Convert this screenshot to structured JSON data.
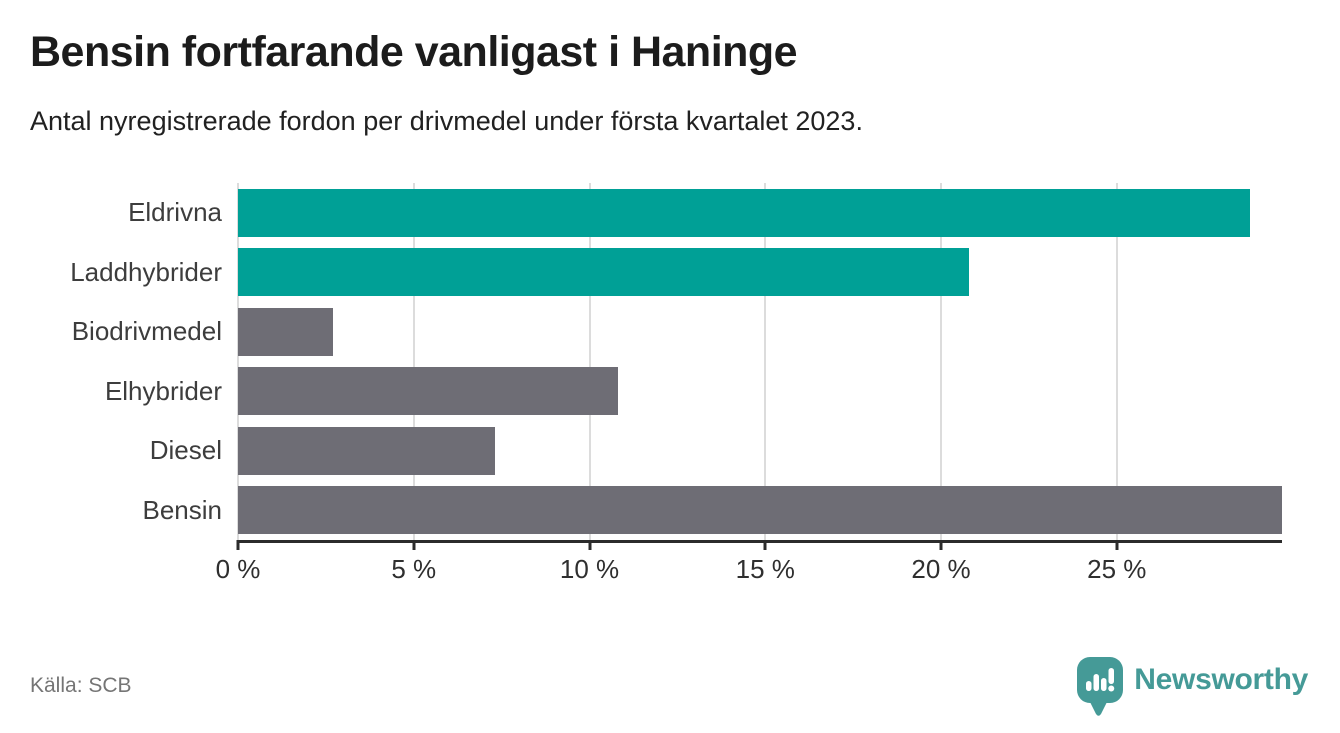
{
  "header": {
    "title": "Bensin fortfarande vanligast i Haninge",
    "subtitle": "Antal nyregistrerade fordon per drivmedel under första kvartalet 2023."
  },
  "chart_data": {
    "type": "bar",
    "orientation": "horizontal",
    "title": "Bensin fortfarande vanligast i Haninge",
    "subtitle": "Antal nyregistrerade fordon per drivmedel under första kvartalet 2023.",
    "unit": "%",
    "categories": [
      "Eldrivna",
      "Laddhybrider",
      "Biodrivmedel",
      "Elhybrider",
      "Diesel",
      "Bensin"
    ],
    "values": [
      28.8,
      20.8,
      2.7,
      10.8,
      7.3,
      29.7
    ],
    "bar_colors": [
      "#00a096",
      "#00a096",
      "#6e6d75",
      "#6e6d75",
      "#6e6d75",
      "#6e6d75"
    ],
    "xlim": [
      0,
      29.7
    ],
    "tick_values": [
      0,
      5,
      10,
      15,
      20,
      25
    ],
    "tick_labels": [
      "0 %",
      "5 %",
      "10 %",
      "15 %",
      "20 %",
      "25 %"
    ],
    "grid": true,
    "legend": false
  },
  "palette": {
    "highlight": "#00a096",
    "neutral": "#6e6d75",
    "grid": "#dcdcdc",
    "axis": "#2b2b2b",
    "brand": "#459a97"
  },
  "footer": {
    "source": "Källa: SCB",
    "brand_name": "Newsworthy",
    "logo_icon": "newsworthy-bubble-bar-chart-icon"
  }
}
